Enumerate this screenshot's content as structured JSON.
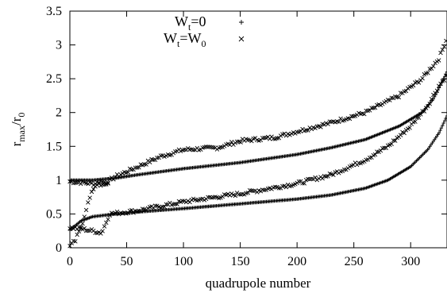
{
  "chart_data": {
    "type": "scatter",
    "xlabel": "quadrupole number",
    "ylabel": "r",
    "ylabel_sub1": "max",
    "ylabel_mid": "/r",
    "ylabel_sub2": "0",
    "xlim": [
      0,
      332
    ],
    "ylim": [
      0,
      3.5
    ],
    "xticks": [
      0,
      50,
      100,
      150,
      200,
      250,
      300
    ],
    "yticks": [
      0,
      0.5,
      1,
      1.5,
      2,
      2.5,
      3,
      3.5
    ],
    "legend_position": "top-center",
    "series": [
      {
        "name_main": "W",
        "name_sub": "t",
        "name_rest": "=0",
        "marker": "plus",
        "curves": [
          {
            "note_points": [
              [
                0,
                1.0
              ],
              [
                20,
                1.0
              ],
              [
                40,
                1.03
              ],
              [
                60,
                1.08
              ],
              [
                100,
                1.17
              ],
              [
                150,
                1.26
              ],
              [
                200,
                1.38
              ],
              [
                230,
                1.48
              ],
              [
                260,
                1.6
              ],
              [
                290,
                1.8
              ],
              [
                310,
                2.0
              ],
              [
                320,
                2.2
              ],
              [
                332,
                2.6
              ]
            ]
          },
          {
            "note_points": [
              [
                0,
                0.26
              ],
              [
                10,
                0.4
              ],
              [
                20,
                0.46
              ],
              [
                40,
                0.5
              ],
              [
                60,
                0.53
              ],
              [
                100,
                0.58
              ],
              [
                150,
                0.65
              ],
              [
                200,
                0.72
              ],
              [
                230,
                0.78
              ],
              [
                260,
                0.88
              ],
              [
                280,
                1.0
              ],
              [
                300,
                1.2
              ],
              [
                315,
                1.45
              ],
              [
                325,
                1.7
              ],
              [
                332,
                1.95
              ]
            ]
          }
        ]
      },
      {
        "name_main": "W",
        "name_sub": "t",
        "name_rest": "=W",
        "name_sub2": "0",
        "marker": "cross",
        "curves": [
          {
            "note_points": [
              [
                0,
                0.98
              ],
              [
                20,
                0.95
              ],
              [
                30,
                0.93
              ],
              [
                40,
                1.05
              ],
              [
                60,
                1.2
              ],
              [
                80,
                1.35
              ],
              [
                100,
                1.45
              ],
              [
                130,
                1.48
              ],
              [
                150,
                1.58
              ],
              [
                180,
                1.63
              ],
              [
                200,
                1.72
              ],
              [
                230,
                1.85
              ],
              [
                260,
                2.0
              ],
              [
                290,
                2.25
              ],
              [
                310,
                2.5
              ],
              [
                325,
                2.8
              ],
              [
                332,
                3.1
              ]
            ]
          },
          {
            "note_points": [
              [
                0,
                0.3
              ],
              [
                10,
                0.28
              ],
              [
                20,
                0.25
              ],
              [
                28,
                0.22
              ],
              [
                35,
                0.5
              ],
              [
                60,
                0.55
              ],
              [
                100,
                0.68
              ],
              [
                150,
                0.8
              ],
              [
                200,
                0.95
              ],
              [
                230,
                1.08
              ],
              [
                260,
                1.3
              ],
              [
                280,
                1.5
              ],
              [
                300,
                1.8
              ],
              [
                315,
                2.1
              ],
              [
                325,
                2.4
              ],
              [
                332,
                2.55
              ]
            ]
          },
          {
            "note_points": [
              [
                0,
                0.03
              ],
              [
                5,
                0.12
              ],
              [
                10,
                0.3
              ],
              [
                15,
                0.6
              ],
              [
                20,
                0.85
              ],
              [
                25,
                0.98
              ],
              [
                30,
                0.97
              ],
              [
                35,
                0.95
              ]
            ]
          }
        ]
      }
    ]
  }
}
